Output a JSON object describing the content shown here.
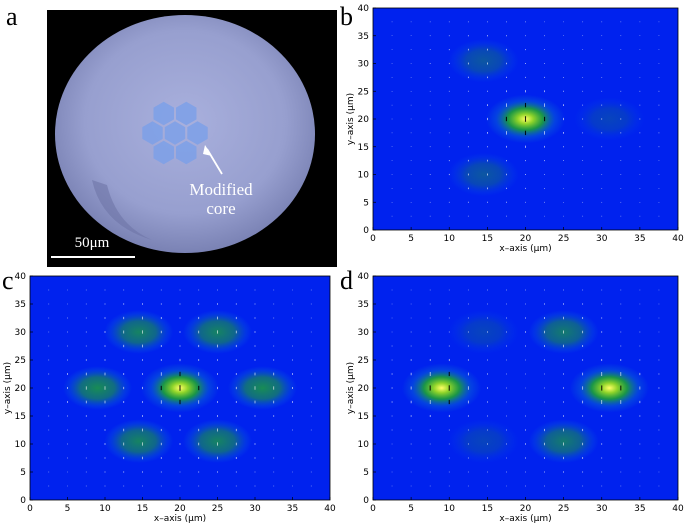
{
  "panels": {
    "a": {
      "letter": "a",
      "annotation_line1": "Modified",
      "annotation_line2": "core",
      "scale_bar": "50μm"
    },
    "b": {
      "letter": "b"
    },
    "c": {
      "letter": "c"
    },
    "d": {
      "letter": "d"
    }
  },
  "chart_data": [
    {
      "type": "heatmap",
      "panel": "b",
      "xlabel": "x–axis (μm)",
      "ylabel": "y–axis (μm)",
      "xlim": [
        0,
        40
      ],
      "ylim": [
        0,
        40
      ],
      "xticks": [
        0,
        5,
        10,
        15,
        20,
        25,
        30,
        35,
        40
      ],
      "yticks": [
        0,
        5,
        10,
        15,
        20,
        25,
        30,
        35,
        40
      ],
      "spots": [
        {
          "x": 20,
          "y": 20,
          "intensity": 1.0
        },
        {
          "x": 14.5,
          "y": 30.5,
          "intensity": 0.3
        },
        {
          "x": 14.5,
          "y": 10,
          "intensity": 0.3
        },
        {
          "x": 31,
          "y": 20,
          "intensity": 0.12
        }
      ],
      "colormap": [
        "#0022ee",
        "#0a6fd0",
        "#1faa2a",
        "#8fd42a",
        "#ffff66"
      ]
    },
    {
      "type": "heatmap",
      "panel": "c",
      "xlabel": "x–axis (μm)",
      "ylabel": "y–axis (μm)",
      "xlim": [
        0,
        40
      ],
      "ylim": [
        0,
        40
      ],
      "xticks": [
        0,
        5,
        10,
        15,
        20,
        25,
        30,
        35,
        40
      ],
      "yticks": [
        0,
        5,
        10,
        15,
        20,
        25,
        30,
        35,
        40
      ],
      "spots": [
        {
          "x": 20,
          "y": 20,
          "intensity": 1.0
        },
        {
          "x": 9,
          "y": 20,
          "intensity": 0.6
        },
        {
          "x": 31,
          "y": 20,
          "intensity": 0.6
        },
        {
          "x": 14.5,
          "y": 30,
          "intensity": 0.55
        },
        {
          "x": 25,
          "y": 30,
          "intensity": 0.55
        },
        {
          "x": 14.5,
          "y": 10.5,
          "intensity": 0.55
        },
        {
          "x": 25,
          "y": 10.5,
          "intensity": 0.55
        }
      ],
      "colormap": [
        "#0022ee",
        "#0a6fd0",
        "#1faa2a",
        "#8fd42a",
        "#ffff66"
      ]
    },
    {
      "type": "heatmap",
      "panel": "d",
      "xlabel": "x–axis (μm)",
      "ylabel": "y–axis (μm)",
      "xlim": [
        0,
        40
      ],
      "ylim": [
        0,
        40
      ],
      "xticks": [
        0,
        5,
        10,
        15,
        20,
        25,
        30,
        35,
        40
      ],
      "yticks": [
        0,
        5,
        10,
        15,
        20,
        25,
        30,
        35,
        40
      ],
      "spots": [
        {
          "x": 9,
          "y": 20,
          "intensity": 1.0
        },
        {
          "x": 31,
          "y": 20,
          "intensity": 0.95
        },
        {
          "x": 25,
          "y": 30,
          "intensity": 0.5
        },
        {
          "x": 25,
          "y": 10.5,
          "intensity": 0.5
        },
        {
          "x": 14.5,
          "y": 30,
          "intensity": 0.12
        },
        {
          "x": 14.5,
          "y": 10.5,
          "intensity": 0.12
        }
      ],
      "colormap": [
        "#0022ee",
        "#0a6fd0",
        "#1faa2a",
        "#8fd42a",
        "#ffff66"
      ]
    }
  ]
}
